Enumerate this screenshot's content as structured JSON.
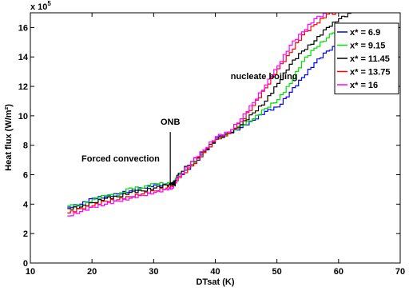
{
  "chart_data": {
    "type": "line",
    "title": "",
    "xlabel": "DTsat (K)",
    "ylabel": "Heat flux (W/m²)",
    "y_multiplier": "x 10",
    "y_multiplier_exp": "5",
    "xlim": [
      10,
      70
    ],
    "ylim": [
      0,
      17
    ],
    "xticks": [
      10,
      20,
      30,
      40,
      50,
      60,
      70
    ],
    "yticks": [
      0,
      2,
      4,
      6,
      8,
      10,
      12,
      14,
      16
    ],
    "grid": false,
    "legend_position": "top-right",
    "annotations": [
      {
        "text": "nucleate boiling",
        "x": 42.5,
        "y": 12.5
      },
      {
        "text": "Forced convection",
        "x": 18.3,
        "y": 6.9
      },
      {
        "text": "ONB",
        "x": 32.7,
        "y": 9.4,
        "arrow_to": [
          32.7,
          5.3
        ],
        "arrow_from_y": 8.9
      }
    ],
    "series": [
      {
        "name": "x* = 6.9",
        "color": "#0000ff",
        "x": [
          16,
          18,
          20,
          22,
          24,
          26,
          28,
          30,
          32,
          33,
          34,
          36,
          38,
          40,
          42,
          44,
          46,
          48,
          50,
          52,
          54,
          56,
          58,
          60
        ],
        "y": [
          3.8,
          4.0,
          4.4,
          4.5,
          4.7,
          4.9,
          5.1,
          5.3,
          5.3,
          5.4,
          5.9,
          6.6,
          7.5,
          8.5,
          8.8,
          9.2,
          9.7,
          10.3,
          10.6,
          11.6,
          12.6,
          13.6,
          14.4,
          14.9
        ]
      },
      {
        "name": "x* = 9.15",
        "color": "#00dd00",
        "x": [
          16,
          18,
          20,
          22,
          24,
          26,
          28,
          30,
          32,
          33,
          34,
          36,
          38,
          40,
          42,
          44,
          46,
          48,
          50,
          52,
          54,
          56,
          58,
          60
        ],
        "y": [
          3.9,
          3.9,
          4.3,
          4.6,
          4.6,
          5.1,
          5.1,
          5.4,
          5.4,
          5.4,
          6.0,
          6.7,
          7.5,
          8.4,
          8.9,
          9.3,
          9.8,
          10.5,
          11.1,
          12.2,
          13.7,
          14.6,
          15.3,
          16.1
        ]
      },
      {
        "name": "x* = 11.45",
        "color": "#000000",
        "x": [
          16,
          18,
          20,
          22,
          24,
          26,
          28,
          30,
          32,
          33,
          34,
          36,
          38,
          40,
          42,
          44,
          46,
          48,
          50,
          52,
          54,
          56,
          58,
          60,
          62
        ],
        "y": [
          3.7,
          3.8,
          4.1,
          4.4,
          4.5,
          4.8,
          4.9,
          5.1,
          5.3,
          5.3,
          6.1,
          6.9,
          7.6,
          8.4,
          8.8,
          9.4,
          10.2,
          11.0,
          12.2,
          13.5,
          14.4,
          15.1,
          16.0,
          16.6,
          17.0
        ]
      },
      {
        "name": "x* = 13.75",
        "color": "#ff0000",
        "x": [
          16,
          18,
          20,
          22,
          24,
          26,
          28,
          30,
          32,
          33,
          34,
          36,
          38,
          40,
          42,
          44,
          46,
          48,
          50,
          52,
          54,
          56,
          58,
          60
        ],
        "y": [
          3.4,
          3.7,
          3.9,
          4.2,
          4.3,
          4.5,
          4.7,
          4.9,
          5.1,
          5.2,
          5.8,
          6.6,
          7.5,
          8.4,
          8.8,
          9.6,
          10.7,
          11.9,
          13.2,
          14.3,
          15.5,
          16.2,
          16.9,
          17.0
        ]
      },
      {
        "name": "x* = 16",
        "color": "#ff00ff",
        "x": [
          16,
          18,
          20,
          22,
          24,
          26,
          28,
          30,
          32,
          33,
          34,
          36,
          38,
          40,
          42,
          44,
          46,
          48,
          50,
          52,
          54,
          56,
          58
        ],
        "y": [
          3.2,
          3.5,
          3.8,
          4.0,
          4.2,
          4.4,
          4.6,
          4.8,
          5.0,
          5.1,
          5.9,
          6.9,
          7.7,
          8.6,
          8.9,
          9.8,
          10.9,
          12.1,
          13.4,
          14.8,
          15.7,
          16.6,
          17.0
        ]
      }
    ]
  }
}
